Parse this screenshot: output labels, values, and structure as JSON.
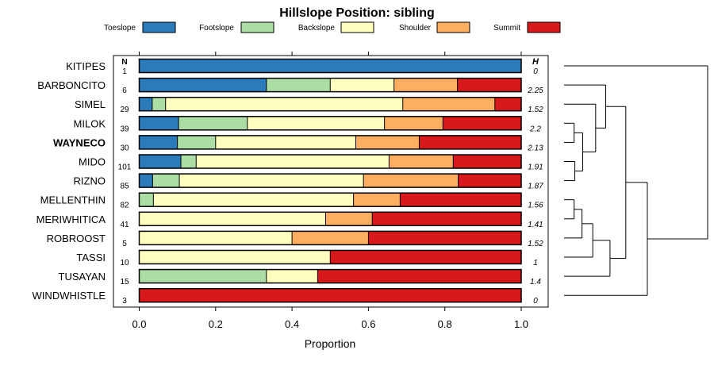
{
  "chart_data": {
    "type": "bar",
    "stacked": true,
    "orientation": "horizontal",
    "title": "Hillslope Position: sibling",
    "xlabel": "Proportion",
    "ylabel": "",
    "xlim": [
      0,
      1
    ],
    "x_ticks": [
      "0.0",
      "0.2",
      "0.4",
      "0.6",
      "0.8",
      "1.0"
    ],
    "x_tick_values": [
      0,
      0.2,
      0.4,
      0.6,
      0.8,
      1.0
    ],
    "n_header": "N",
    "h_header": "H",
    "legend_position": "top",
    "highlighted_category": "WAYNECO",
    "legend": [
      {
        "name": "Toeslope",
        "color": "#2b7bba"
      },
      {
        "name": "Footslope",
        "color": "#abdda4"
      },
      {
        "name": "Backslope",
        "color": "#ffffbf"
      },
      {
        "name": "Shoulder",
        "color": "#fdae61"
      },
      {
        "name": "Summit",
        "color": "#d7191c"
      }
    ],
    "categories": [
      "KITIPES",
      "BARBONCITO",
      "SIMEL",
      "MILOK",
      "WAYNECO",
      "MIDO",
      "RIZNO",
      "MELLENTHIN",
      "MERIWHITICA",
      "ROBROOST",
      "TASSI",
      "TUSAYAN",
      "WINDWHISTLE"
    ],
    "n": [
      "1",
      "6",
      "29",
      "39",
      "30",
      "101",
      "85",
      "82",
      "41",
      "5",
      "10",
      "15",
      "3"
    ],
    "h": [
      "0",
      "2.25",
      "1.52",
      "2.2",
      "2.13",
      "1.91",
      "1.87",
      "1.56",
      "1.41",
      "1.52",
      "1",
      "1.4",
      "0"
    ],
    "series": [
      {
        "name": "Toeslope",
        "values": [
          1.0,
          0.333,
          0.034,
          0.103,
          0.1,
          0.109,
          0.035,
          0.0,
          0.0,
          0.0,
          0.0,
          0.0,
          0.0
        ]
      },
      {
        "name": "Footslope",
        "values": [
          0.0,
          0.167,
          0.035,
          0.18,
          0.1,
          0.04,
          0.07,
          0.037,
          0.0,
          0.0,
          0.0,
          0.333,
          0.0
        ]
      },
      {
        "name": "Backslope",
        "values": [
          0.0,
          0.167,
          0.621,
          0.359,
          0.367,
          0.505,
          0.482,
          0.524,
          0.488,
          0.4,
          0.5,
          0.134,
          0.0
        ]
      },
      {
        "name": "Shoulder",
        "values": [
          0.0,
          0.166,
          0.241,
          0.153,
          0.166,
          0.168,
          0.248,
          0.122,
          0.122,
          0.2,
          0.0,
          0.0,
          0.0
        ]
      },
      {
        "name": "Summit",
        "values": [
          0.0,
          0.167,
          0.069,
          0.205,
          0.267,
          0.178,
          0.165,
          0.317,
          0.39,
          0.4,
          0.5,
          0.533,
          1.0
        ]
      }
    ],
    "dendrogram": {
      "leaves": [
        "KITIPES",
        "BARBONCITO",
        "SIMEL",
        "MILOK",
        "WAYNECO",
        "MIDO",
        "RIZNO",
        "MELLENTHIN",
        "MERIWHITICA",
        "ROBROOST",
        "TASSI",
        "TUSAYAN",
        "WINDWHISTLE"
      ],
      "merges": [
        {
          "a": "L:MILOK",
          "b": "L:WAYNECO",
          "height": 0.07
        },
        {
          "a": "L:MIDO",
          "b": "L:RIZNO",
          "height": 0.075
        },
        {
          "a": "L:MELLENTHIN",
          "b": "L:MERIWHITICA",
          "height": 0.07
        },
        {
          "a": "M:0",
          "b": "M:1",
          "height": 0.13
        },
        {
          "a": "M:2",
          "b": "L:ROBROOST",
          "height": 0.125
        },
        {
          "a": "M:3",
          "b": "L:SIMEL",
          "height": 0.22
        },
        {
          "a": "M:4",
          "b": "L:TASSI",
          "height": 0.2
        },
        {
          "a": "M:5",
          "b": "L:BARBONCITO",
          "height": 0.29
        },
        {
          "a": "M:6",
          "b": "L:TUSAYAN",
          "height": 0.32
        },
        {
          "a": "M:7",
          "b": "M:8",
          "height": 0.43
        },
        {
          "a": "M:9",
          "b": "L:WINDWHISTLE",
          "height": 0.58
        },
        {
          "a": "M:10",
          "b": "L:KITIPES",
          "height": 1.0
        }
      ]
    }
  }
}
